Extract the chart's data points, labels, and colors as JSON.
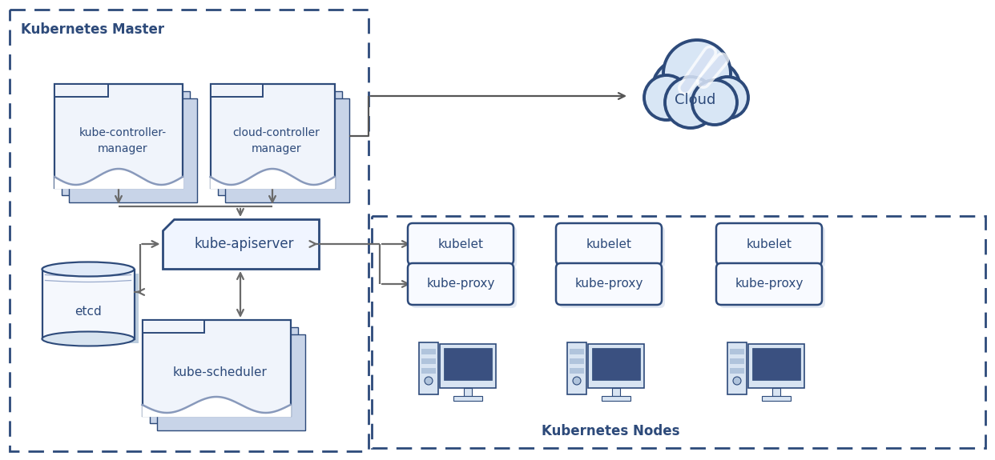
{
  "bg_color": "#ffffff",
  "border_color": "#2d4a7a",
  "box_fill": "#f0f4fb",
  "box_fill_back": "#c8d4e8",
  "box_text_color": "#2d4a7a",
  "arrow_color": "#6a6a6a",
  "master_label": "Kubernetes Master",
  "nodes_label": "Kubernetes Nodes",
  "kube_controller_label": "kube-controller-\nmanager",
  "cloud_controller_label": "cloud-controller\nmanager",
  "kube_apiserver_label": "kube-apiserver",
  "etcd_label": "etcd",
  "kube_scheduler_label": "kube-scheduler",
  "kubelet_label": "kubelet",
  "kube_proxy_label": "kube-proxy",
  "cloud_label": "Cloud",
  "figw": 12.42,
  "figh": 5.75,
  "dpi": 100
}
